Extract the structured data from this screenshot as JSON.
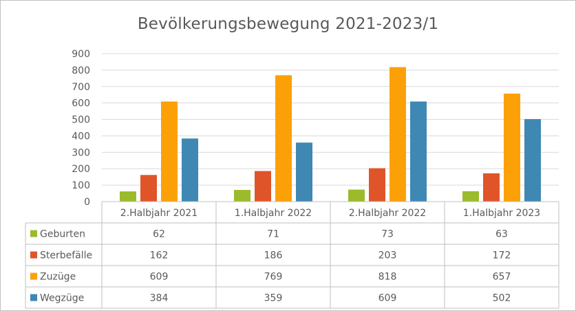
{
  "chart_data": {
    "type": "bar",
    "title": "Bevölkerungsbewegung  2021-2023/1",
    "categories": [
      "2.Halbjahr 2021",
      "1.Halbjahr 2022",
      "2.Halbjahr 2022",
      "1.Halbjahr 2023"
    ],
    "series": [
      {
        "name": "Geburten",
        "values": [
          62,
          71,
          73,
          63
        ],
        "color": "#9bbb2b"
      },
      {
        "name": "Sterbefälle",
        "values": [
          162,
          186,
          203,
          172
        ],
        "color": "#e0542a"
      },
      {
        "name": "Zuzüge",
        "values": [
          609,
          769,
          818,
          657
        ],
        "color": "#fba107"
      },
      {
        "name": "Wegzüge",
        "values": [
          384,
          359,
          609,
          502
        ],
        "color": "#3e88b3"
      }
    ],
    "ylim": [
      0,
      900
    ],
    "yticks": [
      0,
      100,
      200,
      300,
      400,
      500,
      600,
      700,
      800,
      900
    ],
    "grid": true,
    "legend": "data-table"
  }
}
